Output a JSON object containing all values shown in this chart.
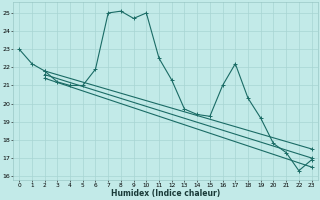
{
  "xlabel": "Humidex (Indice chaleur)",
  "bg_color": "#c2eae8",
  "grid_color": "#a8d5d3",
  "line_color": "#1a6b65",
  "xlim": [
    -0.5,
    23.5
  ],
  "ylim": [
    15.8,
    25.6
  ],
  "yticks": [
    16,
    17,
    18,
    19,
    20,
    21,
    22,
    23,
    24,
    25
  ],
  "xticks": [
    0,
    1,
    2,
    3,
    4,
    5,
    6,
    7,
    8,
    9,
    10,
    11,
    12,
    13,
    14,
    15,
    16,
    17,
    18,
    19,
    20,
    21,
    22,
    23
  ],
  "main_x": [
    0,
    1,
    2,
    3,
    4,
    5,
    6,
    7,
    8,
    9,
    10,
    11,
    12,
    13,
    14,
    15,
    16,
    17,
    18,
    19,
    20,
    21,
    22,
    23
  ],
  "main_y": [
    23.0,
    22.2,
    21.8,
    21.2,
    21.0,
    21.0,
    21.9,
    25.0,
    25.1,
    24.7,
    25.0,
    22.5,
    21.3,
    19.7,
    19.4,
    19.3,
    21.0,
    22.2,
    20.3,
    19.2,
    17.8,
    17.3,
    16.3,
    16.9
  ],
  "trend1_x": [
    2,
    23
  ],
  "trend1_y": [
    21.8,
    17.5
  ],
  "trend2_x": [
    2,
    23
  ],
  "trend2_y": [
    21.6,
    17.0
  ],
  "trend3_x": [
    2,
    23
  ],
  "trend3_y": [
    21.4,
    16.5
  ]
}
